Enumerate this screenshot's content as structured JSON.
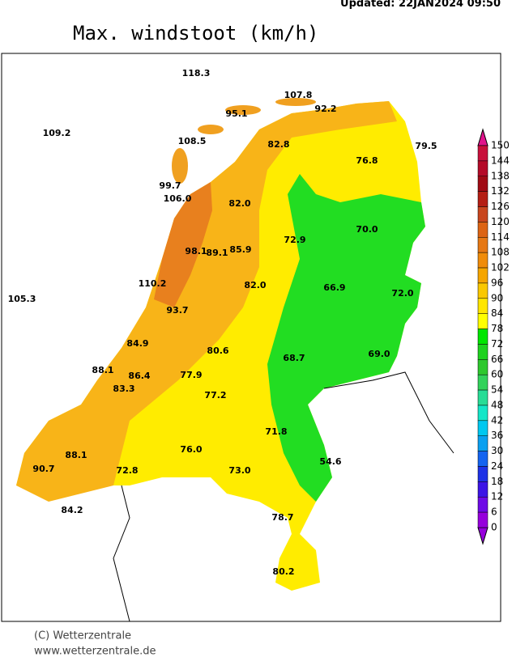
{
  "updated": "Updated:  22JAN2024  09:50",
  "title": "Max. windstoot (km/h)",
  "stations": [
    "118.3",
    "107.8",
    "95.1",
    "92.2",
    "109.2",
    "108.5",
    "82.8",
    "79.5",
    "76.8",
    "99.7",
    "106.0",
    "82.0",
    "70.0",
    "72.9",
    "98.1",
    "89.1",
    "85.9",
    "82.0",
    "110.2",
    "66.9",
    "105.3",
    "93.7",
    "72.0",
    "84.9",
    "80.6",
    "68.7",
    "69.0",
    "88.1",
    "86.4",
    "77.9",
    "83.3",
    "77.2",
    "71.8",
    "88.1",
    "76.0",
    "54.6",
    "90.7",
    "72.8",
    "73.0",
    "84.2",
    "78.7",
    "80.2"
  ],
  "legend": {
    "ticks": [
      150,
      144,
      138,
      132,
      126,
      120,
      114,
      108,
      102,
      96,
      90,
      84,
      78,
      72,
      66,
      60,
      54,
      48,
      42,
      36,
      30,
      24,
      18,
      12,
      6,
      0
    ],
    "colors": [
      "#e0148c",
      "#c8103c",
      "#b40a28",
      "#a00a14",
      "#b41e14",
      "#c8461e",
      "#dc6414",
      "#e67814",
      "#f08c0a",
      "#f5a500",
      "#fac800",
      "#ffe600",
      "#ffff00",
      "#00e600",
      "#1ed21e",
      "#2dc82d",
      "#32d25a",
      "#28dc96",
      "#14e6c8",
      "#00c8f0",
      "#0aa0f0",
      "#1464f0",
      "#1e32e6",
      "#3c14e6",
      "#6e0ae6",
      "#9600dc"
    ]
  },
  "copyright": "(C) Wetterzentrale",
  "url": "www.wetterzentrale.de"
}
